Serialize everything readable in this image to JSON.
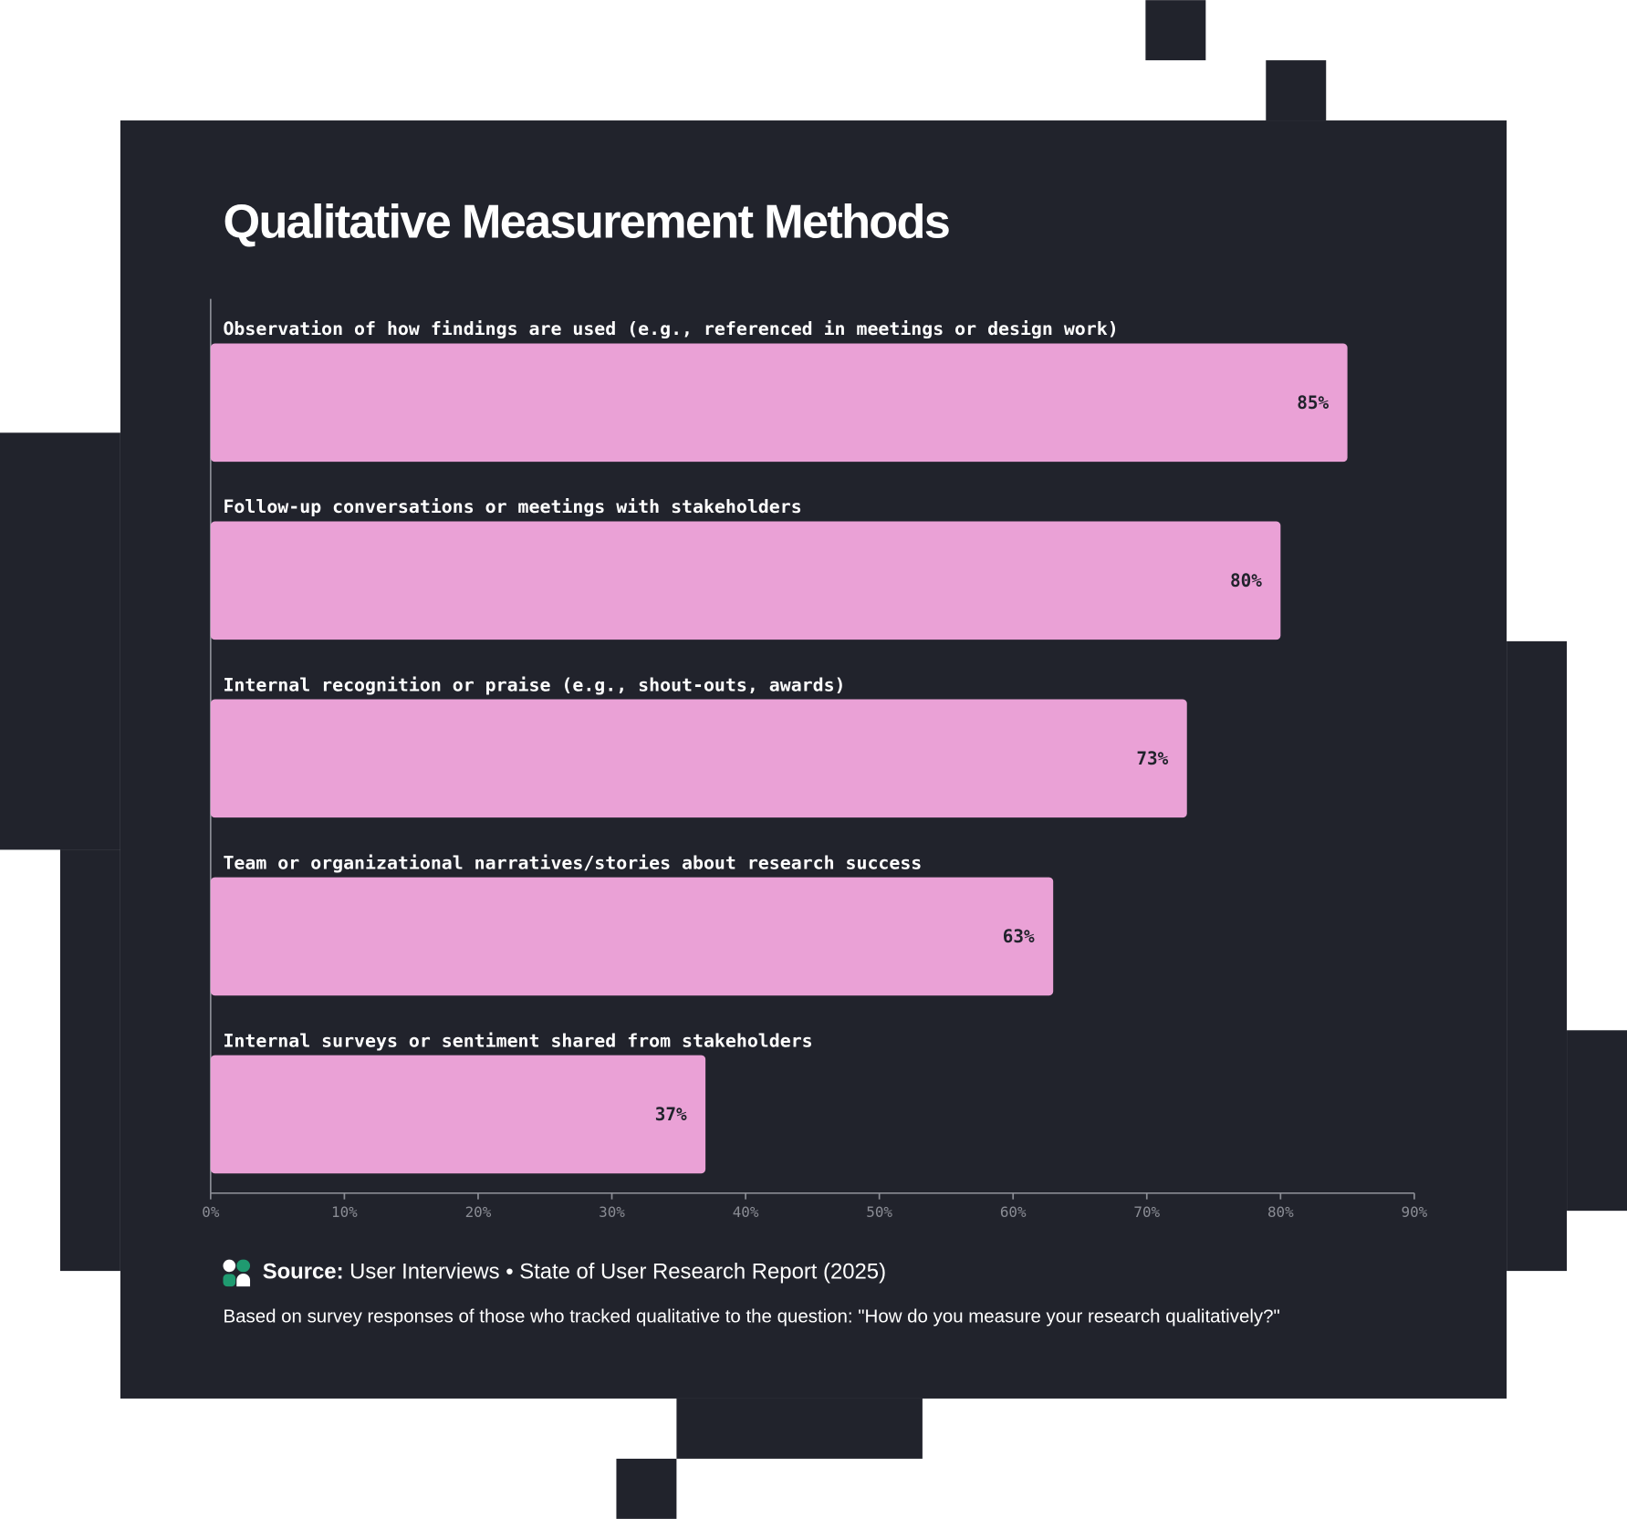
{
  "chart_data": {
    "type": "hbar",
    "title": "Qualitative Measurement Methods",
    "categories": [
      "Observation of how findings are used (e.g., referenced in meetings or design work)",
      "Follow-up conversations or meetings with stakeholders",
      "Internal recognition or praise (e.g., shout-outs, awards)",
      "Team or organizational narratives/stories about research success",
      "Internal surveys or sentiment shared from stakeholders"
    ],
    "values": [
      85,
      80,
      73,
      63,
      37
    ],
    "value_labels": [
      "85%",
      "80%",
      "73%",
      "63%",
      "37%"
    ],
    "color": "#eaa1d6",
    "xlim": [
      0,
      90
    ],
    "xticks": [
      {
        "value": 0,
        "label": "0%"
      },
      {
        "value": 10,
        "label": "10%"
      },
      {
        "value": 20,
        "label": "20%"
      },
      {
        "value": 30,
        "label": "30%"
      },
      {
        "value": 40,
        "label": "40%"
      },
      {
        "value": 50,
        "label": "50%"
      },
      {
        "value": 60,
        "label": "60%"
      },
      {
        "value": 70,
        "label": "70%"
      },
      {
        "value": 80,
        "label": "80%"
      },
      {
        "value": 90,
        "label": "90%"
      }
    ],
    "grid": false,
    "source_label": "Source:",
    "source": "User Interviews • State of User Research Report (2025)",
    "note": "Based on survey responses of those who tracked qualitative to the question: \"How do you measure your research qualitatively?\""
  }
}
